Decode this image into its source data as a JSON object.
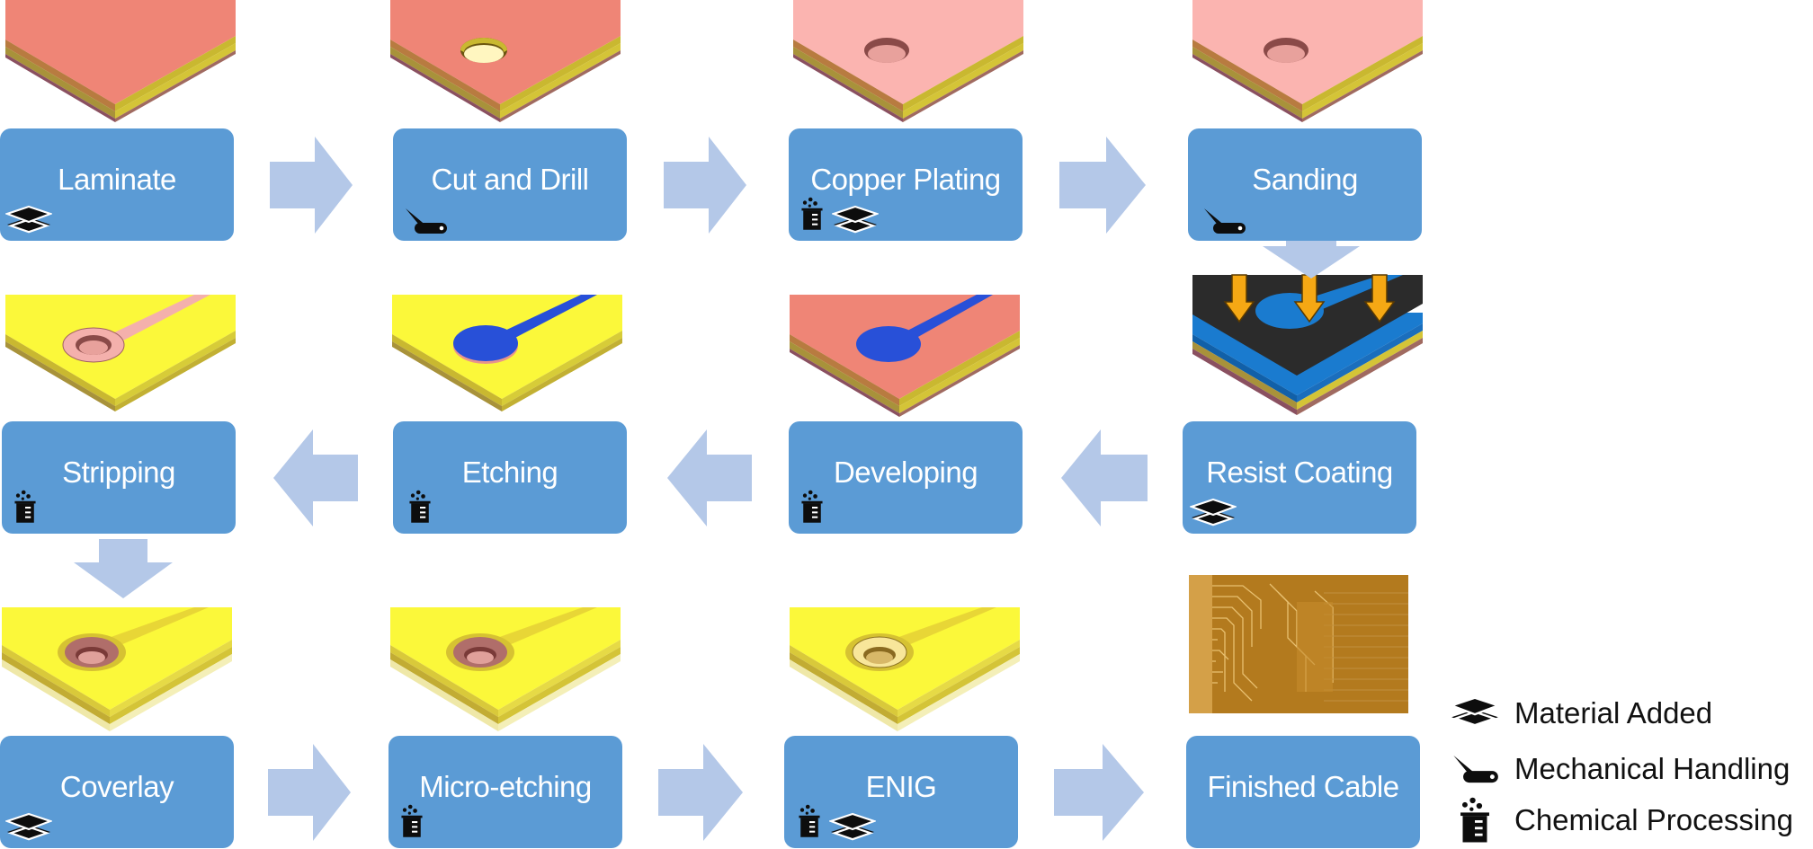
{
  "steps": [
    {
      "id": "laminate",
      "label": "Laminate",
      "icons": [
        "layers-icon"
      ]
    },
    {
      "id": "cut-drill",
      "label": "Cut and Drill",
      "icons": [
        "knife-icon"
      ]
    },
    {
      "id": "copper-plating",
      "label": "Copper Plating",
      "icons": [
        "beaker-icon",
        "layers-icon"
      ]
    },
    {
      "id": "sanding",
      "label": "Sanding",
      "icons": [
        "knife-icon"
      ]
    },
    {
      "id": "resist-coating",
      "label": "Resist Coating",
      "icons": [
        "layers-icon"
      ]
    },
    {
      "id": "developing",
      "label": "Developing",
      "icons": [
        "beaker-icon"
      ]
    },
    {
      "id": "etching",
      "label": "Etching",
      "icons": [
        "beaker-icon"
      ]
    },
    {
      "id": "stripping",
      "label": "Stripping",
      "icons": [
        "beaker-icon"
      ]
    },
    {
      "id": "coverlay",
      "label": "Coverlay",
      "icons": [
        "layers-icon"
      ]
    },
    {
      "id": "micro-etching",
      "label": "Micro-etching",
      "icons": [
        "beaker-icon"
      ]
    },
    {
      "id": "enig",
      "label": "ENIG",
      "icons": [
        "beaker-icon",
        "layers-icon"
      ]
    },
    {
      "id": "finished-cable",
      "label": "Finished Cable",
      "icons": []
    }
  ],
  "legend": [
    {
      "icon": "layers-icon",
      "label": "Material Added"
    },
    {
      "icon": "knife-icon",
      "label": "Mechanical Handling"
    },
    {
      "icon": "beaker-icon",
      "label": "Chemical Processing"
    }
  ],
  "colors": {
    "box": "#5b9bd5",
    "arrow": "#b4c8e8",
    "copper": "#ef8576",
    "copper_light": "#fbb4b0",
    "substrate": "#c9b830",
    "coverlay": "#fbf83a",
    "resist": "#2850d8",
    "mask": "#2a2a2a",
    "uv_arrow": "#f5a814"
  }
}
